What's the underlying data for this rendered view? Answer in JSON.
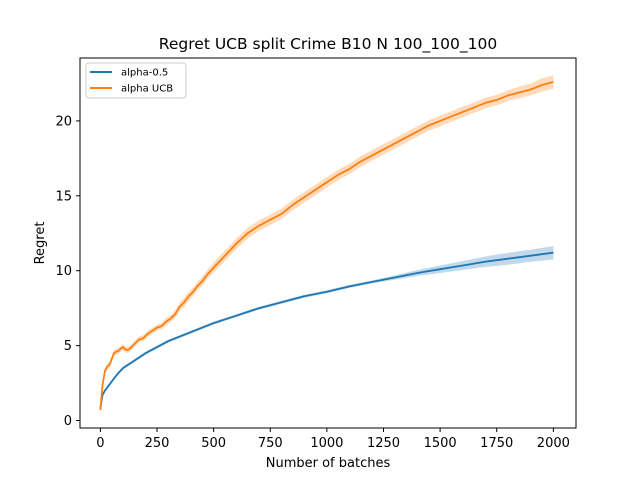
{
  "chart_data": {
    "type": "line",
    "title": "Regret UCB split Crime B10 N 100_100_100",
    "xlabel": "Number of batches",
    "ylabel": "Regret",
    "xlim": [
      -90,
      2100
    ],
    "ylim": [
      -0.5,
      24.2
    ],
    "xticks": [
      0,
      250,
      500,
      750,
      1000,
      1250,
      1500,
      1750,
      2000
    ],
    "yticks": [
      0,
      5,
      10,
      15,
      20
    ],
    "grid": false,
    "legend_position": "upper left",
    "series": [
      {
        "name": "alpha-0.5",
        "color": "#1f77b4",
        "x": [
          0,
          5,
          10,
          20,
          30,
          50,
          75,
          100,
          150,
          200,
          250,
          300,
          400,
          500,
          600,
          700,
          800,
          900,
          1000,
          1100,
          1200,
          1300,
          1400,
          1500,
          1600,
          1700,
          1800,
          1900,
          2000
        ],
        "y": [
          0.8,
          1.3,
          1.7,
          2.0,
          2.2,
          2.6,
          3.1,
          3.5,
          4.0,
          4.5,
          4.9,
          5.3,
          5.9,
          6.5,
          7.0,
          7.5,
          7.9,
          8.3,
          8.6,
          8.95,
          9.25,
          9.55,
          9.85,
          10.1,
          10.35,
          10.6,
          10.8,
          11.0,
          11.2
        ],
        "band_lo": [
          0.7,
          1.2,
          1.6,
          1.9,
          2.1,
          2.5,
          3.0,
          3.4,
          3.9,
          4.4,
          4.8,
          5.2,
          5.8,
          6.4,
          6.9,
          7.4,
          7.8,
          8.2,
          8.5,
          8.85,
          9.15,
          9.4,
          9.65,
          9.85,
          10.05,
          10.25,
          10.4,
          10.6,
          10.75
        ],
        "band_hi": [
          0.9,
          1.4,
          1.8,
          2.1,
          2.3,
          2.7,
          3.2,
          3.6,
          4.1,
          4.6,
          5.0,
          5.4,
          6.0,
          6.6,
          7.1,
          7.6,
          8.0,
          8.4,
          8.7,
          9.05,
          9.35,
          9.7,
          10.05,
          10.35,
          10.65,
          10.95,
          11.2,
          11.4,
          11.65
        ]
      },
      {
        "name": "alpha UCB",
        "color": "#ff7f0e",
        "x": [
          0,
          5,
          10,
          20,
          30,
          40,
          50,
          60,
          70,
          80,
          90,
          100,
          110,
          120,
          130,
          150,
          170,
          190,
          210,
          230,
          250,
          270,
          290,
          310,
          330,
          350,
          370,
          390,
          410,
          430,
          450,
          475,
          500,
          550,
          600,
          650,
          700,
          750,
          800,
          850,
          900,
          950,
          1000,
          1050,
          1100,
          1150,
          1200,
          1250,
          1300,
          1350,
          1400,
          1450,
          1500,
          1550,
          1600,
          1650,
          1700,
          1750,
          1800,
          1850,
          1900,
          1950,
          2000
        ],
        "y": [
          0.7,
          1.6,
          2.4,
          3.3,
          3.6,
          3.7,
          4.1,
          4.5,
          4.6,
          4.65,
          4.8,
          4.9,
          4.75,
          4.7,
          4.8,
          5.1,
          5.4,
          5.5,
          5.8,
          6.0,
          6.2,
          6.3,
          6.6,
          6.8,
          7.1,
          7.6,
          7.9,
          8.3,
          8.6,
          9.0,
          9.3,
          9.8,
          10.2,
          11.0,
          11.8,
          12.5,
          13.0,
          13.4,
          13.8,
          14.4,
          14.9,
          15.4,
          15.9,
          16.4,
          16.8,
          17.3,
          17.7,
          18.1,
          18.5,
          18.9,
          19.3,
          19.7,
          20.0,
          20.3,
          20.6,
          20.9,
          21.2,
          21.4,
          21.7,
          21.9,
          22.1,
          22.4,
          22.6
        ],
        "band_lo": [
          0.6,
          1.4,
          2.2,
          3.1,
          3.4,
          3.5,
          3.9,
          4.3,
          4.4,
          4.45,
          4.6,
          4.7,
          4.55,
          4.5,
          4.6,
          4.9,
          5.2,
          5.3,
          5.6,
          5.8,
          6.0,
          6.1,
          6.35,
          6.55,
          6.85,
          7.3,
          7.6,
          8.0,
          8.3,
          8.7,
          9.0,
          9.5,
          9.85,
          10.65,
          11.45,
          12.15,
          12.65,
          13.05,
          13.45,
          14.05,
          14.55,
          15.05,
          15.55,
          16.05,
          16.45,
          16.95,
          17.35,
          17.75,
          18.15,
          18.55,
          18.95,
          19.35,
          19.65,
          19.95,
          20.25,
          20.55,
          20.85,
          21.05,
          21.35,
          21.5,
          21.7,
          21.95,
          22.15
        ],
        "band_hi": [
          0.8,
          1.8,
          2.6,
          3.5,
          3.8,
          3.9,
          4.3,
          4.7,
          4.8,
          4.85,
          5.0,
          5.1,
          4.95,
          4.9,
          5.0,
          5.3,
          5.6,
          5.7,
          6.0,
          6.2,
          6.4,
          6.5,
          6.85,
          7.05,
          7.35,
          7.9,
          8.2,
          8.6,
          8.9,
          9.3,
          9.6,
          10.1,
          10.55,
          11.35,
          12.15,
          12.85,
          13.35,
          13.75,
          14.15,
          14.75,
          15.25,
          15.75,
          16.25,
          16.75,
          17.15,
          17.65,
          18.05,
          18.45,
          18.85,
          19.25,
          19.65,
          20.05,
          20.35,
          20.65,
          20.95,
          21.25,
          21.55,
          21.75,
          22.05,
          22.3,
          22.5,
          22.85,
          23.05
        ]
      }
    ]
  }
}
